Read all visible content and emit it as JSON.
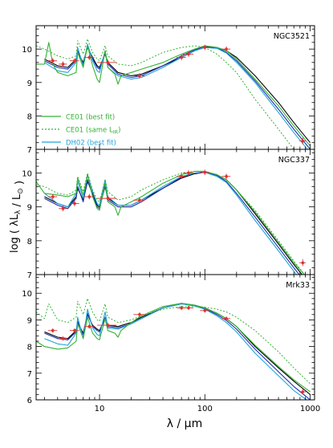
{
  "colors": {
    "model_green": "#33b233",
    "model_cyan": "#1fa4dc",
    "model_black": "#000000",
    "model_blue": "#1a2fb0",
    "data_red": "#e03030",
    "frame": "#000000"
  },
  "figure": {
    "x_axis_label": "λ / μm",
    "y_axis_label": "log ( λL_λ / L_⊙ )",
    "x_tick_labels": [
      "10",
      "100",
      "1000"
    ]
  },
  "legend": {
    "entries": [
      {
        "label": "CE01 (best fit)",
        "color": "#33b233",
        "style": "solid"
      },
      {
        "label": "CE01 (same L_IR)",
        "color": "#33b233",
        "style": "dotted"
      },
      {
        "label": "DH02 (best fit)",
        "color": "#1fa4dc",
        "style": "solid"
      }
    ]
  },
  "chart_data": [
    {
      "type": "line",
      "title": "NGC3521",
      "xscale": "log",
      "xlim": [
        2.5,
        1100
      ],
      "ylim": [
        7,
        10.7
      ],
      "yticks": [
        "7",
        "8",
        "9",
        "10"
      ],
      "series": [
        {
          "color": "#000000",
          "style": "solid",
          "x": [
            3,
            4,
            5,
            6,
            6.2,
            7,
            7.7,
            8.6,
            9.5,
            10,
            11.3,
            12,
            15,
            20,
            25,
            40,
            60,
            80,
            100,
            130,
            160,
            200,
            300,
            500,
            700,
            1000
          ],
          "y": [
            9.7,
            9.5,
            9.45,
            9.7,
            9.9,
            9.6,
            10.05,
            9.75,
            9.5,
            9.45,
            9.85,
            9.6,
            9.3,
            9.2,
            9.25,
            9.5,
            9.75,
            9.95,
            10.05,
            10.05,
            9.95,
            9.75,
            9.2,
            8.4,
            7.8,
            7.2
          ]
        },
        {
          "color": "#1a2fb0",
          "style": "solid",
          "x": [
            3,
            4,
            5,
            6,
            6.2,
            7,
            7.7,
            8.6,
            9.5,
            10,
            11.3,
            12,
            15,
            20,
            25,
            40,
            60,
            80,
            100,
            130,
            160,
            200,
            300,
            500,
            700,
            1000
          ],
          "y": [
            9.65,
            9.45,
            9.4,
            9.65,
            9.95,
            9.55,
            10.1,
            9.7,
            9.45,
            9.4,
            9.9,
            9.55,
            9.25,
            9.15,
            9.2,
            9.5,
            9.8,
            9.98,
            10.08,
            10.05,
            9.9,
            9.65,
            9.05,
            8.2,
            7.6,
            7.0
          ]
        },
        {
          "color": "#1fa4dc",
          "style": "solid",
          "x": [
            3,
            4,
            5,
            6,
            6.2,
            7,
            7.7,
            8.6,
            9.5,
            10,
            11.3,
            12,
            15,
            20,
            25,
            40,
            60,
            80,
            100,
            130,
            160,
            200,
            300,
            500,
            700,
            1000
          ],
          "y": [
            9.6,
            9.35,
            9.3,
            9.6,
            10.05,
            9.5,
            10.15,
            9.65,
            9.35,
            9.3,
            9.95,
            9.45,
            9.2,
            9.1,
            9.15,
            9.45,
            9.75,
            9.95,
            10.05,
            10.02,
            9.88,
            9.6,
            9.0,
            8.1,
            7.5,
            6.9
          ]
        },
        {
          "color": "#33b233",
          "style": "solid",
          "x": [
            2.5,
            3,
            3.3,
            3.6,
            4,
            5,
            6,
            6.2,
            7,
            7.7,
            8.6,
            9.5,
            10,
            11.3,
            12,
            14,
            15,
            16,
            20,
            25,
            40,
            60,
            80,
            100,
            130,
            160,
            200,
            300,
            500,
            700,
            1000
          ],
          "y": [
            9.55,
            9.55,
            10.2,
            9.55,
            9.3,
            9.2,
            9.3,
            9.9,
            9.45,
            10.1,
            9.5,
            9.1,
            9.0,
            9.95,
            9.45,
            9.25,
            8.95,
            9.2,
            9.3,
            9.4,
            9.6,
            9.85,
            10.0,
            10.1,
            10.05,
            9.95,
            9.7,
            9.1,
            8.3,
            7.7,
            7.1
          ]
        },
        {
          "color": "#33b233",
          "style": "dotted",
          "x": [
            2.5,
            3,
            4,
            5,
            6,
            6.2,
            7,
            7.7,
            8.6,
            9.5,
            10,
            11.3,
            12,
            15,
            20,
            25,
            40,
            60,
            80,
            100,
            130,
            160,
            200,
            300,
            500,
            700,
            1000
          ],
          "y": [
            10.1,
            10.0,
            9.8,
            9.7,
            9.8,
            10.25,
            9.85,
            10.3,
            9.9,
            9.7,
            9.65,
            10.1,
            9.8,
            9.55,
            9.5,
            9.6,
            9.9,
            10.05,
            10.1,
            10.05,
            9.85,
            9.6,
            9.3,
            8.5,
            7.6,
            7.0,
            6.5
          ]
        }
      ],
      "data_points": {
        "x": [
          3.6,
          4.5,
          5.8,
          8.0,
          12,
          24,
          60,
          70,
          100,
          160,
          850
        ],
        "y": [
          9.65,
          9.55,
          9.65,
          9.75,
          9.6,
          9.2,
          9.75,
          9.85,
          10.05,
          10.0,
          7.25
        ],
        "xerr": [
          0.35,
          0.4,
          0.6,
          0.9,
          2.5,
          3,
          6,
          8,
          10,
          15,
          60
        ],
        "yerr": [
          0.08,
          0.08,
          0.08,
          0.08,
          0.08,
          0.08,
          0.08,
          0.08,
          0.08,
          0.08,
          0.1
        ]
      }
    },
    {
      "type": "line",
      "title": "NGC337",
      "xscale": "log",
      "xlim": [
        2.5,
        1100
      ],
      "ylim": [
        7,
        10.7
      ],
      "yticks": [
        "7",
        "8",
        "9",
        "10"
      ],
      "series": [
        {
          "color": "#000000",
          "style": "solid",
          "x": [
            3,
            4,
            5,
            6,
            6.2,
            7,
            7.7,
            8.6,
            9.5,
            10,
            11.3,
            12,
            15,
            20,
            25,
            40,
            60,
            80,
            100,
            130,
            160,
            200,
            300,
            500,
            700,
            1000
          ],
          "y": [
            9.3,
            9.1,
            9.0,
            9.3,
            9.55,
            9.2,
            9.75,
            9.4,
            9.05,
            9.0,
            9.6,
            9.25,
            9.05,
            9.05,
            9.2,
            9.55,
            9.85,
            9.98,
            10.02,
            9.95,
            9.8,
            9.5,
            8.8,
            7.9,
            7.3,
            6.7
          ]
        },
        {
          "color": "#1a2fb0",
          "style": "solid",
          "x": [
            3,
            4,
            5,
            6,
            6.2,
            7,
            7.7,
            8.6,
            9.5,
            10,
            11.3,
            12,
            15,
            20,
            25,
            40,
            60,
            80,
            100,
            130,
            160,
            200,
            300,
            500,
            700,
            1000
          ],
          "y": [
            9.25,
            9.05,
            8.95,
            9.25,
            9.6,
            9.15,
            9.8,
            9.35,
            9.0,
            8.95,
            9.65,
            9.2,
            9.0,
            9.0,
            9.15,
            9.55,
            9.88,
            10.0,
            10.03,
            9.93,
            9.75,
            9.4,
            8.7,
            7.8,
            7.2,
            6.6
          ]
        },
        {
          "color": "#1fa4dc",
          "style": "solid",
          "x": [
            3,
            4,
            5,
            6,
            6.2,
            7,
            7.7,
            8.6,
            9.5,
            10,
            11.3,
            12,
            15,
            20,
            25,
            40,
            60,
            80,
            100,
            130,
            160,
            200,
            300,
            500,
            700,
            1000
          ],
          "y": [
            9.4,
            9.1,
            9.0,
            9.4,
            9.75,
            9.25,
            9.95,
            9.45,
            9.1,
            9.05,
            9.8,
            9.3,
            9.05,
            9.05,
            9.2,
            9.6,
            9.9,
            10.0,
            10.02,
            9.9,
            9.72,
            9.35,
            8.6,
            7.7,
            7.1,
            6.5
          ]
        },
        {
          "color": "#33b233",
          "style": "solid",
          "x": [
            2.5,
            3,
            4,
            5,
            6,
            6.2,
            7,
            7.7,
            8.6,
            9.5,
            10,
            11.3,
            12,
            14,
            15,
            16,
            20,
            25,
            40,
            60,
            80,
            100,
            130,
            160,
            200,
            300,
            500,
            700,
            1000
          ],
          "y": [
            9.75,
            9.4,
            9.35,
            9.3,
            9.4,
            9.85,
            9.35,
            9.95,
            9.3,
            8.95,
            8.9,
            9.7,
            9.15,
            9.0,
            8.75,
            9.0,
            9.15,
            9.3,
            9.7,
            9.95,
            10.05,
            10.05,
            9.95,
            9.8,
            9.5,
            8.85,
            7.95,
            7.35,
            6.8
          ]
        },
        {
          "color": "#33b233",
          "style": "dotted",
          "x": [
            2.5,
            3,
            4,
            5,
            6,
            6.2,
            7,
            7.7,
            8.6,
            9.5,
            10,
            11.3,
            12,
            15,
            20,
            25,
            40,
            60,
            80,
            100,
            130,
            160,
            200,
            300,
            500,
            700,
            1000
          ],
          "y": [
            9.65,
            9.6,
            9.4,
            9.35,
            9.5,
            9.9,
            9.45,
            10.0,
            9.5,
            9.2,
            9.15,
            9.8,
            9.45,
            9.2,
            9.3,
            9.5,
            9.8,
            10.0,
            10.05,
            10.05,
            9.95,
            9.8,
            9.5,
            8.9,
            8.0,
            7.4,
            6.8
          ]
        }
      ],
      "data_points": {
        "x": [
          3.6,
          4.5,
          5.8,
          8.0,
          12,
          24,
          60,
          70,
          100,
          160,
          850
        ],
        "y": [
          9.3,
          8.95,
          9.1,
          9.3,
          9.25,
          9.2,
          9.9,
          10.0,
          10.02,
          9.9,
          7.35
        ],
        "xerr": [
          0.35,
          0.4,
          0.6,
          0.9,
          2.5,
          3,
          6,
          8,
          10,
          15,
          60
        ],
        "yerr": [
          0.08,
          0.08,
          0.08,
          0.08,
          0.08,
          0.08,
          0.08,
          0.08,
          0.08,
          0.08,
          0.1
        ]
      }
    },
    {
      "type": "line",
      "title": "Mrk33",
      "xscale": "log",
      "xlim": [
        2.5,
        1100
      ],
      "ylim": [
        6,
        10.7
      ],
      "yticks": [
        "6",
        "7",
        "8",
        "9",
        "10"
      ],
      "series": [
        {
          "color": "#000000",
          "style": "solid",
          "x": [
            3,
            4,
            5,
            6,
            6.2,
            7,
            7.7,
            8.6,
            9.5,
            10,
            11.3,
            12,
            15,
            20,
            25,
            40,
            60,
            80,
            100,
            130,
            160,
            200,
            300,
            500,
            700,
            1000
          ],
          "y": [
            8.55,
            8.35,
            8.3,
            8.6,
            8.9,
            8.5,
            9.2,
            8.8,
            8.65,
            8.6,
            9.05,
            8.8,
            8.75,
            8.9,
            9.1,
            9.45,
            9.6,
            9.55,
            9.45,
            9.25,
            9.05,
            8.75,
            8.0,
            7.2,
            6.7,
            6.2
          ]
        },
        {
          "color": "#1a2fb0",
          "style": "solid",
          "x": [
            3,
            4,
            5,
            6,
            6.2,
            7,
            7.7,
            8.6,
            9.5,
            10,
            11.3,
            12,
            15,
            20,
            25,
            40,
            60,
            80,
            100,
            130,
            160,
            200,
            300,
            500,
            700,
            1000
          ],
          "y": [
            8.5,
            8.3,
            8.25,
            8.55,
            8.95,
            8.45,
            9.25,
            8.75,
            8.6,
            8.55,
            9.1,
            8.75,
            8.7,
            8.85,
            9.05,
            9.45,
            9.62,
            9.55,
            9.42,
            9.2,
            8.98,
            8.65,
            7.9,
            7.05,
            6.5,
            6.0
          ]
        },
        {
          "color": "#1fa4dc",
          "style": "solid",
          "x": [
            3,
            4,
            5,
            6,
            6.2,
            7,
            7.7,
            8.6,
            9.5,
            10,
            11.3,
            12,
            15,
            20,
            25,
            40,
            60,
            80,
            100,
            130,
            160,
            200,
            300,
            500,
            700,
            1000
          ],
          "y": [
            8.3,
            8.1,
            8.05,
            8.5,
            9.1,
            8.3,
            9.4,
            8.7,
            8.45,
            8.4,
            9.3,
            8.7,
            8.65,
            8.85,
            9.05,
            9.45,
            9.6,
            9.52,
            9.4,
            9.15,
            8.9,
            8.55,
            7.75,
            6.9,
            6.35,
            5.9
          ]
        },
        {
          "color": "#33b233",
          "style": "solid",
          "x": [
            2.5,
            3,
            4,
            5,
            6,
            6.2,
            7,
            7.7,
            8.6,
            9.5,
            10,
            11.3,
            12,
            14,
            15,
            16,
            20,
            25,
            40,
            60,
            80,
            100,
            130,
            160,
            200,
            300,
            500,
            700,
            1000
          ],
          "y": [
            8.2,
            8.0,
            7.9,
            7.95,
            8.2,
            8.85,
            8.3,
            9.1,
            8.5,
            8.3,
            8.25,
            9.05,
            8.6,
            8.5,
            8.35,
            8.6,
            8.9,
            9.15,
            9.5,
            9.62,
            9.55,
            9.45,
            9.25,
            9.05,
            8.75,
            8.05,
            7.25,
            6.75,
            6.3
          ]
        },
        {
          "color": "#33b233",
          "style": "dotted",
          "x": [
            2.5,
            3,
            3.3,
            4,
            5,
            6,
            6.2,
            7,
            7.7,
            8.6,
            9.5,
            10,
            11.3,
            12,
            15,
            20,
            25,
            40,
            60,
            80,
            100,
            130,
            160,
            200,
            300,
            500,
            700,
            1000
          ],
          "y": [
            9.3,
            9.05,
            9.6,
            9.0,
            8.9,
            9.1,
            9.7,
            9.2,
            9.8,
            9.3,
            9.0,
            8.95,
            9.6,
            9.1,
            8.9,
            9.0,
            9.15,
            9.4,
            9.5,
            9.5,
            9.48,
            9.4,
            9.3,
            9.1,
            8.6,
            7.8,
            7.2,
            6.6
          ]
        }
      ],
      "data_points": {
        "x": [
          3.6,
          4.5,
          5.8,
          8.0,
          12,
          24,
          60,
          70,
          100,
          160,
          850
        ],
        "y": [
          8.6,
          8.3,
          8.6,
          8.75,
          8.8,
          9.2,
          9.45,
          9.45,
          9.35,
          9.05,
          6.3
        ],
        "xerr": [
          0.35,
          0.4,
          0.6,
          0.9,
          2.5,
          3,
          6,
          8,
          10,
          15,
          60
        ],
        "yerr": [
          0.08,
          0.08,
          0.08,
          0.08,
          0.08,
          0.08,
          0.08,
          0.08,
          0.08,
          0.08,
          0.1
        ]
      }
    }
  ]
}
